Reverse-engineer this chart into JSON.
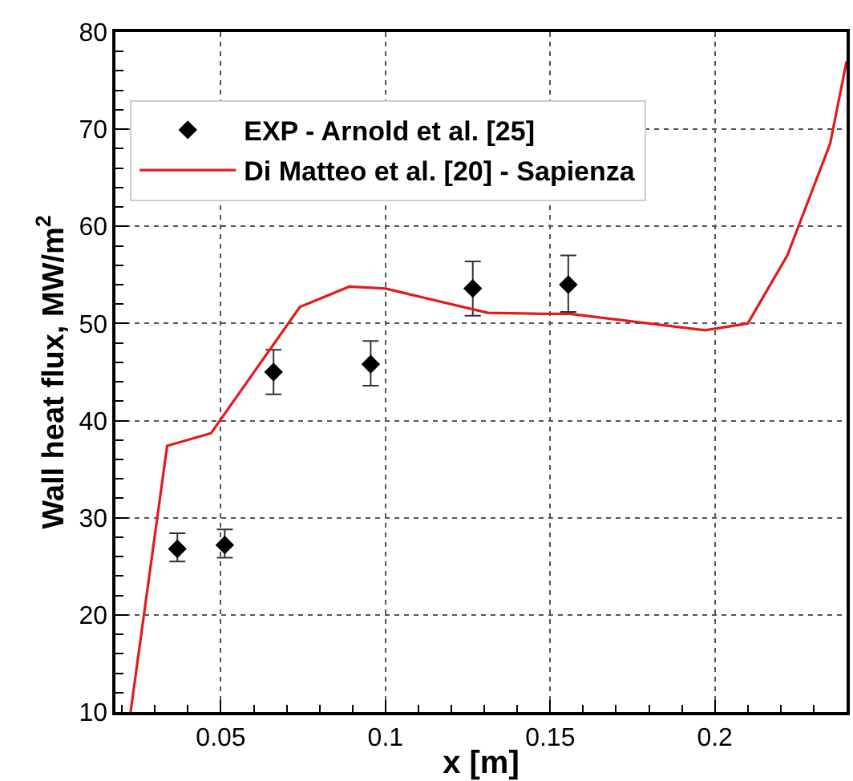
{
  "chart_data": {
    "type": "line",
    "xlabel": "x [m]",
    "ylabel": "Wall heat flux, MW/m$^{2}$",
    "xlim": [
      0.018,
      0.24
    ],
    "ylim": [
      10,
      80
    ],
    "xticks": [
      {
        "value": 0.02,
        "label": null
      },
      {
        "value": 0.03,
        "label": null
      },
      {
        "value": 0.04,
        "label": null
      },
      0.05,
      {
        "value": 0.06,
        "label": null
      },
      {
        "value": 0.07,
        "label": null
      },
      {
        "value": 0.08,
        "label": null
      },
      {
        "value": 0.09,
        "label": null
      },
      0.1,
      {
        "value": 0.11,
        "label": null
      },
      {
        "value": 0.12,
        "label": null
      },
      {
        "value": 0.13,
        "label": null
      },
      {
        "value": 0.14,
        "label": null
      },
      0.15,
      {
        "value": 0.16,
        "label": null
      },
      {
        "value": 0.17,
        "label": null
      },
      {
        "value": 0.18,
        "label": null
      },
      {
        "value": 0.19,
        "label": null
      },
      0.2,
      {
        "value": 0.21,
        "label": null
      },
      {
        "value": 0.22,
        "label": null
      },
      {
        "value": 0.23,
        "label": null
      }
    ],
    "yticks": [
      10,
      {
        "value": 12,
        "label": null
      },
      {
        "value": 14,
        "label": null
      },
      {
        "value": 16,
        "label": null
      },
      {
        "value": 18,
        "label": null
      },
      20,
      {
        "value": 22,
        "label": null
      },
      {
        "value": 24,
        "label": null
      },
      {
        "value": 26,
        "label": null
      },
      {
        "value": 28,
        "label": null
      },
      30,
      {
        "value": 32,
        "label": null
      },
      {
        "value": 34,
        "label": null
      },
      {
        "value": 36,
        "label": null
      },
      {
        "value": 38,
        "label": null
      },
      40,
      {
        "value": 42,
        "label": null
      },
      {
        "value": 44,
        "label": null
      },
      {
        "value": 46,
        "label": null
      },
      {
        "value": 48,
        "label": null
      },
      50,
      {
        "value": 52,
        "label": null
      },
      {
        "value": 54,
        "label": null
      },
      {
        "value": 56,
        "label": null
      },
      {
        "value": 58,
        "label": null
      },
      60,
      {
        "value": 62,
        "label": null
      },
      {
        "value": 64,
        "label": null
      },
      {
        "value": 66,
        "label": null
      },
      {
        "value": 68,
        "label": null
      },
      70,
      {
        "value": 72,
        "label": null
      },
      {
        "value": 74,
        "label": null
      },
      {
        "value": 76,
        "label": null
      },
      {
        "value": 78,
        "label": null
      },
      80
    ],
    "grid": true,
    "legend": "top left",
    "series": [
      {
        "name": "EXP - Arnold et al. [25]",
        "type": "scatter",
        "marker": "diamond",
        "color": "#000000",
        "x": [
          0.0368,
          0.0512,
          0.066,
          0.0955,
          0.1265,
          0.1555
        ],
        "values": [
          26.8,
          27.2,
          45.0,
          45.8,
          53.6,
          54.0
        ],
        "errors": [
          [
            25.5,
            28.4
          ],
          [
            25.9,
            28.8
          ],
          [
            42.7,
            47.3
          ],
          [
            43.6,
            48.2
          ],
          [
            50.8,
            56.4
          ],
          [
            51.2,
            57.0
          ]
        ]
      },
      {
        "name": "Di Matteo et al. [20] - Sapienza",
        "marker": "none",
        "line_style": "solid",
        "color": "#e31a1c",
        "x": [
          0.0226,
          0.0337,
          0.047,
          0.074,
          0.089,
          0.1,
          0.131,
          0.148,
          0.156,
          0.197,
          0.21,
          0.222,
          0.235,
          0.24
        ],
        "values": [
          10,
          37.4,
          38.7,
          51.7,
          53.8,
          53.6,
          51.1,
          51.0,
          51.0,
          49.3,
          50.0,
          57.0,
          68.5,
          77.0
        ]
      }
    ]
  }
}
